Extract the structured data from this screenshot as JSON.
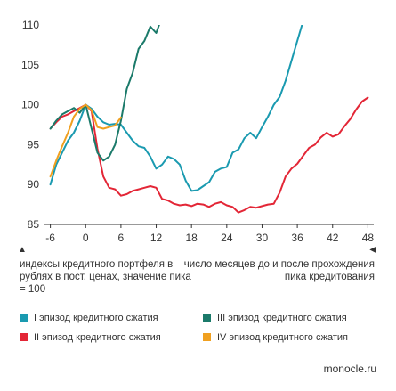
{
  "chart_data": {
    "type": "line",
    "xlim": [
      -7,
      49
    ],
    "ylim": [
      85,
      110
    ],
    "x_ticks": [
      -6,
      0,
      6,
      12,
      18,
      24,
      30,
      36,
      42,
      48
    ],
    "y_ticks": [
      85,
      90,
      95,
      100,
      105,
      110
    ],
    "grid": false,
    "legend_position": "bottom",
    "y_note": "индексы кредитного портфеля в рублях в пост. ценах, значение пика = 100",
    "x_note": "число месяцев до и после прохождения пика кредитования",
    "series": [
      {
        "name": "I эпизод кредитного сжатия",
        "color": "#1a9ab0",
        "x": [
          -6,
          -5,
          -4,
          -3,
          -2,
          -1,
          0,
          1,
          2,
          3,
          4,
          5,
          6,
          7,
          8,
          9,
          10,
          11,
          12,
          13,
          14,
          15,
          16,
          17,
          18,
          19,
          20,
          21,
          22,
          23,
          24,
          25,
          26,
          27,
          28,
          29,
          30,
          31,
          32,
          33,
          34,
          35,
          36,
          37
        ],
        "y": [
          90,
          92.5,
          94,
          95.5,
          96.5,
          98,
          100,
          99.5,
          98.5,
          97.8,
          97.5,
          97.6,
          97.5,
          96.5,
          95.5,
          94.8,
          94.6,
          93.5,
          92,
          92.5,
          93.5,
          93.2,
          92.5,
          90.5,
          89.2,
          89.3,
          89.8,
          90.3,
          91.6,
          92,
          92.2,
          94,
          94.4,
          95.8,
          96.5,
          95.8,
          97.2,
          98.5,
          100,
          101,
          103,
          105.5,
          108,
          110.5
        ]
      },
      {
        "name": "II эпизод кредитного сжатия",
        "color": "#e32636",
        "x": [
          -6,
          -5,
          -4,
          -3,
          -2,
          -1,
          0,
          1,
          2,
          3,
          4,
          5,
          6,
          7,
          8,
          9,
          10,
          11,
          12,
          13,
          14,
          15,
          16,
          17,
          18,
          19,
          20,
          21,
          22,
          23,
          24,
          25,
          26,
          27,
          28,
          29,
          30,
          31,
          32,
          33,
          34,
          35,
          36,
          37,
          38,
          39,
          40,
          41,
          42,
          43,
          44,
          45,
          46,
          47,
          48
        ],
        "y": [
          97,
          97.8,
          98.5,
          98.8,
          99.2,
          99.6,
          100,
          99.2,
          94.5,
          91,
          89.6,
          89.4,
          88.6,
          88.8,
          89.2,
          89.4,
          89.6,
          89.8,
          89.6,
          88.2,
          88,
          87.6,
          87.4,
          87.5,
          87.3,
          87.6,
          87.5,
          87.2,
          87.6,
          87.8,
          87.4,
          87.2,
          86.5,
          86.8,
          87.2,
          87.1,
          87.3,
          87.5,
          87.6,
          89,
          91,
          92,
          92.6,
          93.6,
          94.6,
          95,
          95.9,
          96.5,
          96,
          96.3,
          97.3,
          98.2,
          99.4,
          100.4,
          100.9
        ]
      },
      {
        "name": "III эпизод кредитного сжатия",
        "color": "#1b7a6a",
        "x": [
          -6,
          -5,
          -4,
          -3,
          -2,
          -1,
          0,
          1,
          2,
          3,
          4,
          5,
          6,
          7,
          8,
          9,
          10,
          11,
          12,
          13
        ],
        "y": [
          97,
          98,
          98.8,
          99.2,
          99.6,
          99,
          100,
          97,
          94,
          93,
          93.5,
          95,
          98,
          102,
          104,
          107,
          108,
          109.8,
          109,
          111
        ]
      },
      {
        "name": "IV эпизод кредитного сжатия",
        "color": "#f0a020",
        "x": [
          -6,
          -5,
          -4,
          -3,
          -2,
          -1,
          0,
          1,
          2,
          3,
          4,
          5,
          6
        ],
        "y": [
          91,
          93,
          94.8,
          96.5,
          98.5,
          99.5,
          100,
          99.3,
          97.2,
          97,
          97.2,
          97.4,
          98.4
        ]
      }
    ]
  },
  "source": "monocle.ru"
}
